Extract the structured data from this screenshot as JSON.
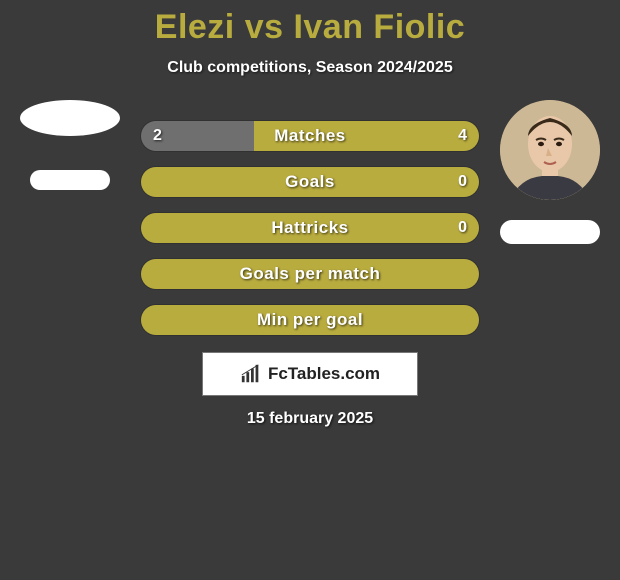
{
  "colors": {
    "title_color": "#b9ac3f",
    "subtitle_color": "#ffffff",
    "bar_left_fill": "#6f6f6f",
    "bar_right_fill": "#b9ac3f",
    "bar_full_yellow": "#b9ac3f",
    "text_white": "#ffffff",
    "avatar_ring": "#ffffff"
  },
  "title": "Elezi vs Ivan Fiolic",
  "subtitle": "Club competitions, Season 2024/2025",
  "date": "15 february 2025",
  "logo": {
    "text": "FcTables.com",
    "icon_name": "barchart-icon"
  },
  "players": {
    "left": {
      "name": "Elezi",
      "has_photo": false
    },
    "right": {
      "name": "Ivan Fiolic",
      "has_photo": true
    }
  },
  "stats": [
    {
      "label": "Matches",
      "left_value": "2",
      "right_value": "4",
      "left_pct": 33.3,
      "right_pct": 66.7,
      "show_values": true
    },
    {
      "label": "Goals",
      "left_value": "",
      "right_value": "0",
      "left_pct": 0,
      "right_pct": 100,
      "show_values": true
    },
    {
      "label": "Hattricks",
      "left_value": "",
      "right_value": "0",
      "left_pct": 0,
      "right_pct": 100,
      "show_values": true
    },
    {
      "label": "Goals per match",
      "left_value": "",
      "right_value": "",
      "left_pct": 0,
      "right_pct": 100,
      "show_values": false
    },
    {
      "label": "Min per goal",
      "left_value": "",
      "right_value": "",
      "left_pct": 0,
      "right_pct": 100,
      "show_values": false
    }
  ]
}
